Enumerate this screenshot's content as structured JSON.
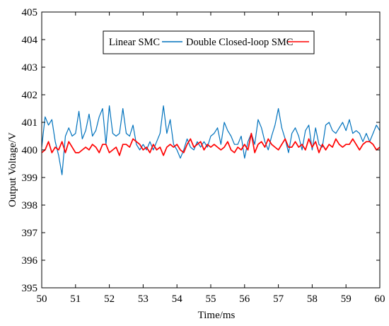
{
  "chart_data": {
    "type": "line",
    "xlabel": "Time/ms",
    "ylabel": "Output Voltage/V",
    "xlim": [
      50,
      60
    ],
    "ylim": [
      395,
      405
    ],
    "xticks": [
      50,
      51,
      52,
      53,
      54,
      55,
      56,
      57,
      58,
      59,
      60
    ],
    "yticks": [
      395,
      396,
      397,
      398,
      399,
      400,
      401,
      402,
      403,
      404,
      405
    ],
    "grid": false,
    "legend_position": "top-center",
    "series": [
      {
        "name": "Linear SMC",
        "color": "#0072BD",
        "x": [
          50.0,
          50.1,
          50.2,
          50.3,
          50.4,
          50.5,
          50.6,
          50.7,
          50.8,
          50.9,
          51.0,
          51.1,
          51.2,
          51.3,
          51.4,
          51.5,
          51.6,
          51.7,
          51.8,
          51.9,
          52.0,
          52.1,
          52.2,
          52.3,
          52.4,
          52.5,
          52.6,
          52.7,
          52.8,
          52.9,
          53.0,
          53.1,
          53.2,
          53.3,
          53.4,
          53.5,
          53.6,
          53.7,
          53.8,
          53.9,
          54.0,
          54.1,
          54.2,
          54.3,
          54.4,
          54.5,
          54.6,
          54.7,
          54.8,
          54.9,
          55.0,
          55.1,
          55.2,
          55.3,
          55.4,
          55.5,
          55.6,
          55.7,
          55.8,
          55.9,
          56.0,
          56.1,
          56.2,
          56.3,
          56.4,
          56.5,
          56.6,
          56.7,
          56.8,
          56.9,
          57.0,
          57.1,
          57.2,
          57.3,
          57.4,
          57.5,
          57.6,
          57.7,
          57.8,
          57.9,
          58.0,
          58.1,
          58.2,
          58.3,
          58.4,
          58.5,
          58.6,
          58.7,
          58.8,
          58.9,
          59.0,
          59.1,
          59.2,
          59.3,
          59.4,
          59.5,
          59.6,
          59.7,
          59.8,
          59.9,
          60.0
        ],
        "y": [
          400.1,
          401.2,
          400.9,
          401.1,
          400.3,
          399.8,
          399.1,
          400.5,
          400.8,
          400.5,
          400.6,
          401.4,
          400.4,
          400.7,
          401.3,
          400.5,
          400.7,
          401.2,
          401.5,
          400.2,
          401.6,
          400.6,
          400.5,
          400.6,
          401.5,
          400.6,
          400.5,
          400.9,
          400.2,
          400.0,
          400.2,
          400.0,
          400.3,
          400.0,
          400.3,
          400.6,
          401.6,
          400.6,
          401.1,
          400.2,
          400.0,
          399.7,
          400.0,
          400.4,
          400.1,
          400.0,
          400.3,
          400.1,
          400.3,
          400.1,
          400.5,
          400.6,
          400.8,
          400.2,
          401.0,
          400.7,
          400.5,
          400.2,
          400.2,
          400.5,
          399.7,
          400.3,
          400.6,
          400.2,
          401.1,
          400.8,
          400.3,
          400.0,
          400.5,
          400.9,
          401.5,
          400.8,
          400.4,
          399.9,
          400.6,
          400.8,
          400.5,
          400.0,
          400.7,
          400.9,
          400.0,
          400.8,
          400.2,
          400.1,
          400.9,
          401.0,
          400.7,
          400.6,
          400.8,
          401.0,
          400.7,
          401.1,
          400.6,
          400.7,
          400.6,
          400.3,
          400.6,
          400.3,
          400.6,
          400.9,
          400.7
        ]
      },
      {
        "name": "Double Closed-loop SMC",
        "color": "#FF0000",
        "x": [
          50.0,
          50.1,
          50.2,
          50.3,
          50.4,
          50.5,
          50.6,
          50.7,
          50.8,
          50.9,
          51.0,
          51.1,
          51.2,
          51.3,
          51.4,
          51.5,
          51.6,
          51.7,
          51.8,
          51.9,
          52.0,
          52.1,
          52.2,
          52.3,
          52.4,
          52.5,
          52.6,
          52.7,
          52.8,
          52.9,
          53.0,
          53.1,
          53.2,
          53.3,
          53.4,
          53.5,
          53.6,
          53.7,
          53.8,
          53.9,
          54.0,
          54.1,
          54.2,
          54.3,
          54.4,
          54.5,
          54.6,
          54.7,
          54.8,
          54.9,
          55.0,
          55.1,
          55.2,
          55.3,
          55.4,
          55.5,
          55.6,
          55.7,
          55.8,
          55.9,
          56.0,
          56.1,
          56.2,
          56.3,
          56.4,
          56.5,
          56.6,
          56.7,
          56.8,
          56.9,
          57.0,
          57.1,
          57.2,
          57.3,
          57.4,
          57.5,
          57.6,
          57.7,
          57.8,
          57.9,
          58.0,
          58.1,
          58.2,
          58.3,
          58.4,
          58.5,
          58.6,
          58.7,
          58.8,
          58.9,
          59.0,
          59.1,
          59.2,
          59.3,
          59.4,
          59.5,
          59.6,
          59.7,
          59.8,
          59.9,
          60.0
        ],
        "y": [
          399.9,
          400.0,
          400.3,
          399.9,
          400.1,
          400.0,
          400.3,
          399.9,
          400.3,
          400.1,
          399.9,
          399.9,
          400.0,
          400.1,
          400.0,
          400.2,
          400.1,
          399.9,
          400.2,
          400.2,
          399.9,
          400.0,
          400.1,
          399.8,
          400.2,
          400.2,
          400.1,
          400.4,
          400.3,
          400.2,
          400.0,
          400.1,
          399.9,
          400.2,
          400.0,
          400.1,
          399.8,
          400.1,
          400.2,
          400.1,
          400.2,
          400.0,
          399.9,
          400.2,
          400.4,
          400.1,
          400.2,
          400.3,
          400.0,
          400.2,
          400.1,
          400.2,
          400.1,
          400.0,
          400.1,
          400.3,
          400.0,
          399.9,
          400.1,
          400.0,
          400.2,
          400.0,
          400.6,
          399.9,
          400.2,
          400.3,
          400.1,
          400.4,
          400.2,
          400.1,
          400.0,
          400.2,
          400.4,
          400.1,
          400.1,
          400.3,
          400.1,
          400.2,
          400.0,
          400.4,
          400.1,
          400.3,
          399.9,
          400.2,
          400.0,
          400.2,
          400.1,
          400.4,
          400.2,
          400.1,
          400.2,
          400.2,
          400.4,
          400.2,
          400.0,
          400.2,
          400.3,
          400.3,
          400.2,
          400.0,
          400.1
        ]
      }
    ]
  }
}
